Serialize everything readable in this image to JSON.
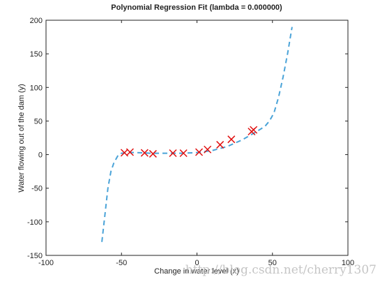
{
  "chart_data": {
    "type": "scatter",
    "title": "Polynomial Regression Fit (lambda = 0.000000)",
    "x_label": "Change in water level (x)",
    "y_label": "Water flowing out of the dam (y)",
    "xlim": [
      -100,
      100
    ],
    "xticks": [
      -100,
      -50,
      0,
      50,
      100
    ],
    "ylim": [
      -150,
      200
    ],
    "yticks": [
      -150,
      -100,
      -50,
      0,
      50,
      100,
      150,
      200
    ],
    "series": [
      {
        "type": "line",
        "color": "#4aa3d8",
        "dashed": true,
        "x": [
          -63,
          -61,
          -59,
          -57,
          -55,
          -52,
          -50,
          -45,
          -40,
          -30,
          -20,
          -10,
          0,
          10,
          20,
          30,
          40,
          45,
          48,
          51,
          54,
          57,
          60,
          63
        ],
        "values": [
          -130,
          -90,
          -50,
          -25,
          -12,
          0,
          2,
          3,
          3,
          2,
          2,
          2,
          3,
          6,
          12,
          22,
          35,
          42,
          50,
          62,
          85,
          115,
          150,
          190
        ]
      },
      {
        "type": "scatter",
        "color": "#e01010",
        "marker": "x",
        "x": [
          -15.94,
          -29.15,
          36.19,
          37.49,
          -48.06,
          -8.94,
          15.31,
          -34.71,
          1.39,
          -44.38,
          7.01,
          22.76
        ],
        "values": [
          2.13,
          1.17,
          34.36,
          36.84,
          2.81,
          2.12,
          14.71,
          2.61,
          3.74,
          3.73,
          7.63,
          22.75
        ]
      }
    ],
    "watermark": "http://blog.csdn.net/cherry1307"
  }
}
